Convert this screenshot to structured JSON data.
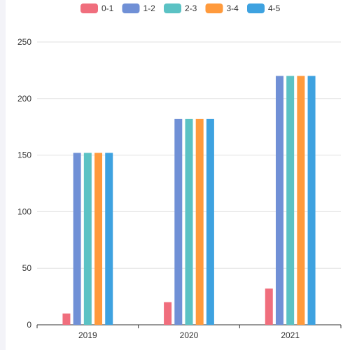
{
  "chart_data": {
    "type": "bar",
    "categories": [
      "2019",
      "2020",
      "2021"
    ],
    "series": [
      {
        "name": "0-1",
        "color": "#f06e7d",
        "values": [
          10,
          20,
          32
        ]
      },
      {
        "name": "1-2",
        "color": "#7090d6",
        "values": [
          152,
          182,
          220
        ]
      },
      {
        "name": "2-3",
        "color": "#5bc2c4",
        "values": [
          152,
          182,
          220
        ]
      },
      {
        "name": "3-4",
        "color": "#ff9a3c",
        "values": [
          152,
          182,
          220
        ]
      },
      {
        "name": "4-5",
        "color": "#3ea2e0",
        "values": [
          152,
          182,
          220
        ]
      }
    ],
    "ylim": [
      0,
      250
    ],
    "yticks": [
      0,
      50,
      100,
      150,
      200,
      250
    ],
    "grid": true,
    "legend_position": "top"
  }
}
